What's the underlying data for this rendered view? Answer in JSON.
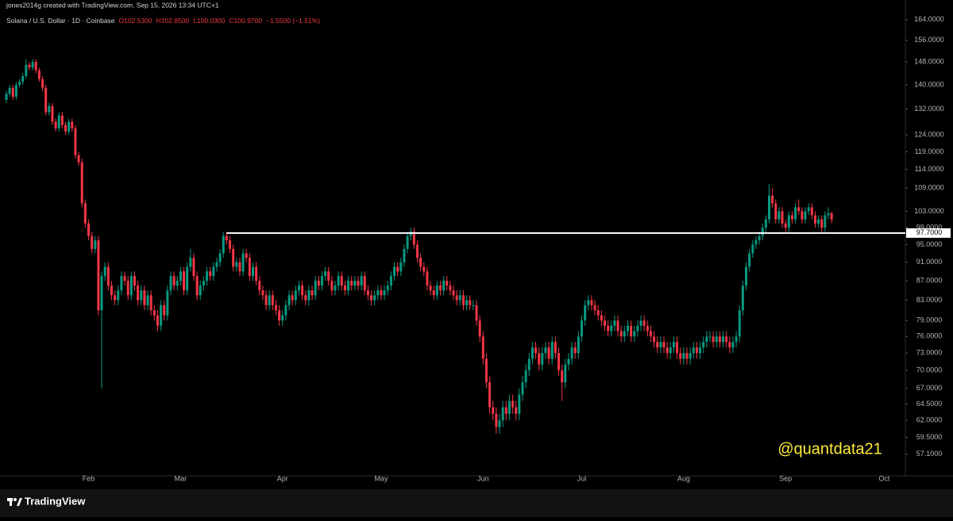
{
  "header": "jones2014g created with TradingView.com, Sep 15, 2026 13:34 UTC+1",
  "footer": {
    "brand": "TradingView"
  },
  "chart_data": {
    "type": "candlestick",
    "title": "Solana / U.S. Dollar · 1D · Coinbase",
    "ohlc_legend": [
      "O102.5300",
      "H102.8500",
      "L100.0300",
      "C100.9700",
      "−1.5500 (−1.51%)"
    ],
    "up_color": "#089981",
    "down_color": "#f23645",
    "log_scale": true,
    "ylim": [
      54.4,
      169.4
    ],
    "yticks": [
      {
        "value": 164,
        "label": "164.0000"
      },
      {
        "value": 156,
        "label": "156.0000"
      },
      {
        "value": 148,
        "label": "148.0000"
      },
      {
        "value": 140,
        "label": "140.0000"
      },
      {
        "value": 132,
        "label": "132.0000"
      },
      {
        "value": 124,
        "label": "124.0000"
      },
      {
        "value": 119,
        "label": "119.0000"
      },
      {
        "value": 114,
        "label": "114.0000"
      },
      {
        "value": 109,
        "label": "109.0000"
      },
      {
        "value": 103,
        "label": "103.0000"
      },
      {
        "value": 99,
        "label": "99.0000"
      },
      {
        "value": 95,
        "label": "95.0000"
      },
      {
        "value": 91,
        "label": "91.0000"
      },
      {
        "value": 87,
        "label": "87.0000"
      },
      {
        "value": 83,
        "label": "83.0000"
      },
      {
        "value": 79,
        "label": "79.0000"
      },
      {
        "value": 76,
        "label": "76.0000"
      },
      {
        "value": 73,
        "label": "73.0000"
      },
      {
        "value": 70,
        "label": "70.0000"
      },
      {
        "value": 67,
        "label": "67.0000"
      },
      {
        "value": 64.5,
        "label": "64.5000"
      },
      {
        "value": 62,
        "label": "62.0000"
      },
      {
        "value": 59.5,
        "label": "59.5000"
      },
      {
        "value": 57.1,
        "label": "57.1000"
      }
    ],
    "hline": {
      "value": 97.7,
      "label": "97.7000",
      "color": "#ffffff"
    },
    "annotation": {
      "text": "@quantdata21",
      "color": "#ffeb3b"
    },
    "categories": [
      null,
      null,
      null,
      null,
      null,
      null,
      null,
      null,
      null,
      null,
      null,
      null,
      null,
      null,
      null,
      null,
      null,
      null,
      null,
      null,
      null,
      null,
      null,
      null,
      null,
      "Feb",
      null,
      null,
      null,
      null,
      null,
      null,
      null,
      null,
      null,
      null,
      null,
      null,
      null,
      null,
      null,
      null,
      null,
      null,
      null,
      null,
      null,
      null,
      null,
      null,
      null,
      null,
      null,
      "Mar",
      null,
      null,
      null,
      null,
      null,
      null,
      null,
      null,
      null,
      null,
      null,
      null,
      null,
      null,
      null,
      null,
      null,
      null,
      null,
      null,
      null,
      null,
      null,
      null,
      null,
      null,
      null,
      null,
      null,
      null,
      "Apr",
      null,
      null,
      null,
      null,
      null,
      null,
      null,
      null,
      null,
      null,
      null,
      null,
      null,
      null,
      null,
      null,
      null,
      null,
      null,
      null,
      null,
      null,
      null,
      null,
      null,
      null,
      null,
      null,
      null,
      "May",
      null,
      null,
      null,
      null,
      null,
      null,
      null,
      null,
      null,
      null,
      null,
      null,
      null,
      null,
      null,
      null,
      null,
      null,
      null,
      null,
      null,
      null,
      null,
      null,
      null,
      null,
      null,
      null,
      null,
      null,
      "Jun",
      null,
      null,
      null,
      null,
      null,
      null,
      null,
      null,
      null,
      null,
      null,
      null,
      null,
      null,
      null,
      null,
      null,
      null,
      null,
      null,
      null,
      null,
      null,
      null,
      null,
      null,
      null,
      null,
      null,
      "Jul",
      null,
      null,
      null,
      null,
      null,
      null,
      null,
      null,
      null,
      null,
      null,
      null,
      null,
      null,
      null,
      null,
      null,
      null,
      null,
      null,
      null,
      null,
      null,
      null,
      null,
      null,
      null,
      null,
      null,
      null,
      "Aug",
      null,
      null,
      null,
      null,
      null,
      null,
      null,
      null,
      null,
      null,
      null,
      null,
      null,
      null,
      null,
      null,
      null,
      null,
      null,
      null,
      null,
      null,
      null,
      null,
      null,
      null,
      null,
      null,
      null,
      null,
      "Sep",
      null,
      null,
      null,
      null,
      null,
      null,
      null,
      null,
      null,
      null,
      null,
      null,
      null,
      null,
      null,
      null,
      null,
      null,
      null,
      null,
      null,
      null,
      null,
      null,
      null,
      null,
      null,
      null,
      null,
      "Oct"
    ],
    "open": [
      135,
      137,
      139,
      136,
      140,
      141,
      143,
      147,
      146,
      148,
      145,
      142,
      139,
      131,
      133,
      128,
      126,
      130,
      127,
      125,
      128,
      126,
      118,
      116,
      105,
      100,
      97,
      94,
      96,
      81,
      88,
      90,
      86,
      84,
      83,
      85,
      88,
      87,
      84,
      88,
      86,
      83,
      85,
      82,
      84,
      81,
      80,
      78,
      82,
      80,
      85,
      88,
      86,
      87,
      89,
      85,
      90,
      92,
      88,
      84,
      86,
      87,
      89,
      88,
      90,
      91,
      93,
      97,
      96,
      94,
      90,
      91,
      89,
      93,
      92,
      88,
      90,
      87,
      85,
      84,
      82,
      84,
      82,
      81,
      79,
      80,
      82,
      84,
      83,
      85,
      86,
      84,
      83,
      85,
      84,
      87,
      86,
      88,
      89,
      87,
      85,
      86,
      88,
      86,
      85,
      87,
      86,
      87,
      86,
      88,
      85,
      84,
      83,
      84,
      85,
      84,
      85,
      86,
      88,
      90,
      89,
      91,
      94,
      97,
      98,
      95,
      92,
      90,
      89,
      86,
      85,
      84,
      86,
      85,
      87,
      86,
      85,
      84,
      83,
      84,
      82,
      83,
      82,
      82,
      79,
      76,
      72,
      68,
      64,
      63,
      61,
      62,
      64,
      63,
      65,
      64,
      63,
      66,
      68,
      70,
      72,
      74,
      73,
      71,
      73,
      74,
      72,
      75,
      73,
      70,
      68,
      71,
      72,
      74,
      73,
      76,
      79,
      82,
      83,
      82,
      81,
      80,
      79,
      78,
      77,
      78,
      79,
      77,
      76,
      77,
      78,
      76,
      77,
      78,
      79,
      78,
      77,
      76,
      75,
      74,
      75,
      74,
      73,
      74,
      75,
      73,
      72,
      73,
      72,
      73,
      74,
      73,
      74,
      75,
      76,
      76,
      75,
      76,
      75,
      76,
      75,
      74,
      75,
      76,
      81,
      86,
      90,
      93,
      95,
      96,
      97,
      99,
      101,
      107,
      105,
      101,
      103,
      100,
      99,
      102,
      101,
      104,
      103,
      101,
      103,
      104,
      102,
      100,
      101,
      99,
      102,
      102.53,
      null,
      null,
      null,
      null,
      null,
      null,
      null,
      null,
      null,
      null,
      null,
      null,
      null,
      null,
      null,
      null
    ],
    "high": [
      138,
      140,
      140,
      141,
      142,
      144,
      149,
      148,
      149,
      149,
      146,
      143,
      140,
      134,
      134,
      129,
      131,
      131,
      128,
      129,
      129,
      127,
      119,
      117,
      106,
      101,
      98,
      97,
      97,
      89,
      91,
      91,
      87,
      85,
      86,
      89,
      89,
      88,
      89,
      89,
      87,
      86,
      86,
      85,
      85,
      82,
      81,
      83,
      83,
      86,
      89,
      89,
      88,
      90,
      90,
      91,
      94,
      93,
      89,
      87,
      88,
      90,
      90,
      91,
      92,
      94,
      98,
      98,
      97,
      95,
      92,
      92,
      94,
      94,
      93,
      91,
      91,
      88,
      86,
      85,
      85,
      85,
      83,
      82,
      81,
      83,
      85,
      85,
      86,
      87,
      87,
      85,
      86,
      86,
      88,
      88,
      89,
      90,
      90,
      88,
      87,
      89,
      89,
      87,
      88,
      88,
      88,
      88,
      89,
      89,
      86,
      85,
      85,
      86,
      86,
      86,
      87,
      89,
      91,
      91,
      92,
      95,
      98,
      99,
      99,
      96,
      93,
      91,
      90,
      87,
      86,
      87,
      87,
      88,
      88,
      87,
      86,
      85,
      85,
      85,
      84,
      84,
      83,
      83,
      80,
      77,
      73,
      69,
      65,
      64,
      63,
      65,
      65,
      66,
      66,
      65,
      67,
      69,
      71,
      73,
      75,
      75,
      74,
      74,
      75,
      75,
      76,
      76,
      74,
      71,
      72,
      73,
      75,
      75,
      77,
      80,
      83,
      84,
      84,
      83,
      82,
      81,
      80,
      79,
      79,
      80,
      80,
      78,
      78,
      79,
      79,
      78,
      79,
      80,
      80,
      79,
      78,
      77,
      76,
      76,
      76,
      75,
      75,
      76,
      76,
      74,
      74,
      74,
      74,
      75,
      75,
      75,
      76,
      77,
      77,
      77,
      77,
      77,
      77,
      77,
      76,
      76,
      77,
      82,
      87,
      91,
      94,
      96,
      97,
      98,
      100,
      102,
      110,
      109,
      106,
      104,
      104,
      101,
      103,
      103,
      105,
      106,
      104,
      104,
      105,
      105,
      103,
      102,
      102,
      103,
      104,
      102.85,
      null,
      null,
      null,
      null,
      null,
      null,
      null,
      null,
      null,
      null,
      null,
      null,
      null,
      null,
      null,
      null
    ],
    "low": [
      134,
      136,
      135,
      135,
      139,
      140,
      142,
      145,
      145,
      144,
      141,
      138,
      130,
      130,
      127,
      125,
      125,
      126,
      124,
      124,
      125,
      117,
      115,
      104,
      99,
      96,
      93,
      93,
      80,
      67,
      87,
      85,
      83,
      82,
      82,
      84,
      86,
      83,
      83,
      85,
      82,
      82,
      81,
      81,
      80,
      79,
      77,
      77,
      79,
      79,
      84,
      85,
      85,
      86,
      84,
      84,
      89,
      87,
      83,
      83,
      85,
      86,
      87,
      87,
      89,
      90,
      92,
      95,
      93,
      89,
      89,
      88,
      88,
      91,
      87,
      87,
      86,
      84,
      83,
      81,
      81,
      81,
      80,
      78,
      78,
      79,
      81,
      82,
      82,
      84,
      83,
      82,
      82,
      83,
      83,
      85,
      85,
      87,
      86,
      84,
      84,
      85,
      85,
      84,
      84,
      85,
      85,
      85,
      85,
      84,
      83,
      82,
      82,
      83,
      83,
      83,
      84,
      85,
      87,
      88,
      88,
      90,
      93,
      96,
      94,
      91,
      89,
      88,
      85,
      84,
      83,
      83,
      84,
      84,
      85,
      84,
      83,
      82,
      82,
      81,
      81,
      81,
      81,
      78,
      75,
      71,
      67,
      63,
      62,
      60,
      60,
      61,
      62,
      62,
      63,
      62,
      62,
      65,
      67,
      69,
      71,
      72,
      70,
      70,
      72,
      71,
      71,
      72,
      69,
      65,
      67,
      70,
      71,
      72,
      72,
      75,
      78,
      81,
      81,
      80,
      79,
      78,
      77,
      76,
      76,
      77,
      76,
      75,
      75,
      76,
      75,
      75,
      76,
      77,
      77,
      76,
      75,
      74,
      73,
      73,
      73,
      72,
      72,
      73,
      72,
      71,
      71,
      71,
      71,
      72,
      72,
      72,
      73,
      74,
      75,
      74,
      74,
      74,
      74,
      74,
      73,
      73,
      74,
      75,
      80,
      85,
      89,
      92,
      94,
      95,
      96,
      98,
      100,
      104,
      100,
      100,
      99,
      98,
      98,
      100,
      100,
      102,
      100,
      100,
      102,
      101,
      99,
      99,
      98,
      98,
      101,
      100.03,
      null,
      null,
      null,
      null,
      null,
      null,
      null,
      null,
      null,
      null,
      null,
      null,
      null,
      null,
      null,
      null
    ],
    "close": [
      137,
      139,
      136,
      140,
      141,
      143,
      147,
      146,
      148,
      145,
      142,
      139,
      131,
      133,
      128,
      126,
      130,
      127,
      125,
      128,
      126,
      118,
      116,
      105,
      100,
      97,
      94,
      96,
      81,
      88,
      90,
      86,
      84,
      83,
      85,
      88,
      87,
      84,
      88,
      86,
      83,
      85,
      82,
      84,
      81,
      80,
      78,
      82,
      80,
      85,
      88,
      86,
      87,
      89,
      85,
      90,
      92,
      88,
      84,
      86,
      87,
      89,
      88,
      90,
      91,
      93,
      97,
      96,
      94,
      90,
      91,
      89,
      93,
      92,
      88,
      90,
      87,
      85,
      84,
      82,
      84,
      82,
      81,
      79,
      80,
      82,
      84,
      83,
      85,
      86,
      84,
      83,
      85,
      84,
      87,
      86,
      88,
      89,
      87,
      85,
      86,
      88,
      86,
      85,
      87,
      86,
      87,
      86,
      88,
      85,
      84,
      83,
      84,
      85,
      84,
      85,
      86,
      88,
      90,
      89,
      91,
      94,
      97,
      98,
      95,
      92,
      90,
      89,
      86,
      85,
      84,
      86,
      85,
      87,
      86,
      85,
      84,
      83,
      84,
      82,
      83,
      82,
      82,
      79,
      76,
      72,
      68,
      64,
      63,
      61,
      62,
      64,
      63,
      65,
      64,
      63,
      66,
      68,
      70,
      72,
      74,
      73,
      71,
      73,
      74,
      72,
      75,
      73,
      70,
      68,
      71,
      72,
      74,
      73,
      76,
      79,
      82,
      83,
      82,
      81,
      80,
      79,
      78,
      77,
      78,
      79,
      77,
      76,
      77,
      78,
      76,
      77,
      78,
      79,
      78,
      77,
      76,
      75,
      74,
      75,
      74,
      73,
      74,
      75,
      73,
      72,
      73,
      72,
      73,
      74,
      73,
      74,
      75,
      76,
      76,
      75,
      76,
      75,
      76,
      75,
      74,
      75,
      76,
      81,
      86,
      90,
      93,
      95,
      96,
      97,
      99,
      101,
      107,
      105,
      101,
      103,
      100,
      99,
      102,
      101,
      104,
      103,
      101,
      103,
      104,
      102,
      100,
      101,
      99,
      102,
      102.5,
      100.97,
      null,
      null,
      null,
      null,
      null,
      null,
      null,
      null,
      null,
      null,
      null,
      null,
      null,
      null,
      null,
      null
    ]
  }
}
